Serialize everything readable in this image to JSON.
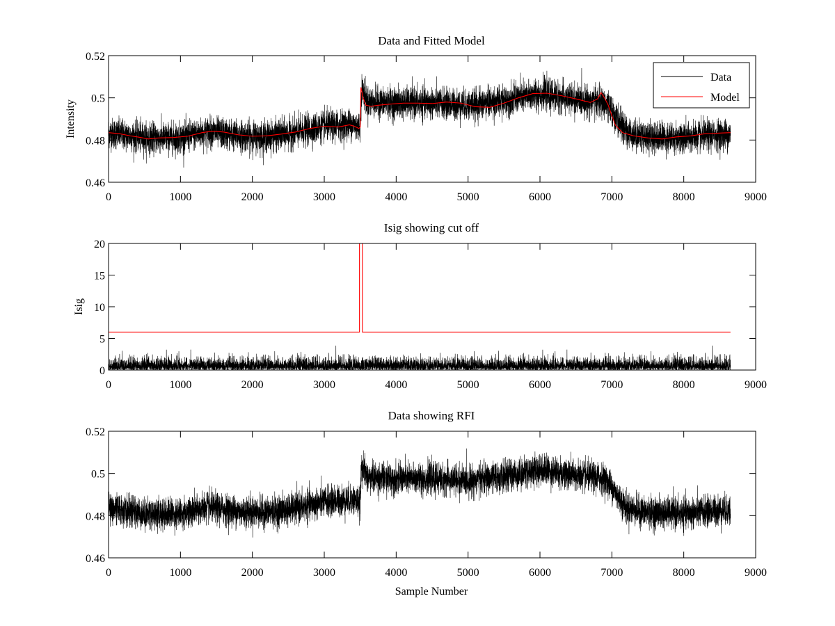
{
  "chart_data": [
    {
      "type": "line",
      "title": "Data and Fitted Model",
      "xlabel": "",
      "ylabel": "Intensity",
      "xlim": [
        0,
        9000
      ],
      "ylim": [
        0.46,
        0.52
      ],
      "xticks": [
        0,
        1000,
        2000,
        3000,
        4000,
        5000,
        6000,
        7000,
        8000,
        9000
      ],
      "yticks": [
        0.46,
        0.48,
        0.5,
        0.52
      ],
      "xtick_labels": [
        "0",
        "1000",
        "2000",
        "3000",
        "4000",
        "5000",
        "6000",
        "7000",
        "8000",
        "9000"
      ],
      "ytick_labels": [
        "0.46",
        "0.48",
        "0.5",
        "0.52"
      ],
      "legend_position": "top-right",
      "grid": false,
      "series": [
        {
          "name": "Data",
          "color": "#000000",
          "style": "noisy",
          "noise": 0.0065,
          "baseline_x": [
            0,
            500,
            1000,
            1400,
            1800,
            2200,
            2600,
            3000,
            3400,
            3500,
            3520,
            3600,
            4000,
            4500,
            5000,
            5500,
            6000,
            6500,
            6800,
            6900,
            7000,
            7200,
            7500,
            8000,
            8500,
            8650
          ],
          "baseline_y": [
            0.4835,
            0.481,
            0.481,
            0.484,
            0.482,
            0.4815,
            0.4835,
            0.4865,
            0.4875,
            0.486,
            0.5045,
            0.498,
            0.4975,
            0.4975,
            0.4965,
            0.4985,
            0.502,
            0.499,
            0.498,
            0.4975,
            0.4935,
            0.4835,
            0.4815,
            0.481,
            0.4825,
            0.4825
          ]
        },
        {
          "name": "Model",
          "color": "#ff0000",
          "style": "smooth",
          "x": [
            0,
            150,
            300,
            450,
            550,
            700,
            900,
            1100,
            1300,
            1450,
            1600,
            1800,
            2000,
            2200,
            2400,
            2600,
            2800,
            3000,
            3200,
            3350,
            3420,
            3480,
            3500,
            3510,
            3520,
            3540,
            3580,
            3650,
            3750,
            3900,
            4100,
            4300,
            4500,
            4700,
            4900,
            5100,
            5300,
            5500,
            5700,
            5900,
            6100,
            6300,
            6500,
            6700,
            6800,
            6850,
            6900,
            6950,
            7000,
            7050,
            7150,
            7300,
            7500,
            7700,
            7900,
            8100,
            8300,
            8500,
            8650
          ],
          "y": [
            0.4835,
            0.483,
            0.482,
            0.4812,
            0.4805,
            0.481,
            0.4812,
            0.4818,
            0.4835,
            0.4842,
            0.4838,
            0.4825,
            0.4818,
            0.482,
            0.4828,
            0.4838,
            0.4855,
            0.4865,
            0.4862,
            0.4872,
            0.4865,
            0.4855,
            0.486,
            0.505,
            0.5035,
            0.5,
            0.4965,
            0.496,
            0.4965,
            0.497,
            0.4975,
            0.4975,
            0.4973,
            0.498,
            0.4975,
            0.4958,
            0.4955,
            0.4975,
            0.5,
            0.502,
            0.5022,
            0.501,
            0.4995,
            0.4978,
            0.4995,
            0.5025,
            0.4998,
            0.4965,
            0.4915,
            0.487,
            0.4835,
            0.482,
            0.481,
            0.4805,
            0.4815,
            0.482,
            0.483,
            0.4833,
            0.4835
          ]
        }
      ]
    },
    {
      "type": "line",
      "title": "Isig showing cut off",
      "xlabel": "",
      "ylabel": "Isig",
      "xlim": [
        0,
        9000
      ],
      "ylim": [
        0,
        20
      ],
      "xticks": [
        0,
        1000,
        2000,
        3000,
        4000,
        5000,
        6000,
        7000,
        8000,
        9000
      ],
      "yticks": [
        0,
        5,
        10,
        15,
        20
      ],
      "xtick_labels": [
        "0",
        "1000",
        "2000",
        "3000",
        "4000",
        "5000",
        "6000",
        "7000",
        "8000",
        "9000"
      ],
      "ytick_labels": [
        "0",
        "5",
        "10",
        "15",
        "20"
      ],
      "grid": false,
      "series": [
        {
          "color": "#000000",
          "style": "abs-noise",
          "x_range": [
            0,
            8650
          ],
          "noise": 0.9
        },
        {
          "color": "#ff0000",
          "style": "step",
          "x": [
            0,
            3490,
            3490,
            3530,
            3530,
            8650
          ],
          "y": [
            6,
            6,
            20,
            20,
            6,
            6
          ]
        }
      ]
    },
    {
      "type": "line",
      "title": "Data showing RFI",
      "xlabel": "Sample Number",
      "ylabel": "",
      "xlim": [
        0,
        9000
      ],
      "ylim": [
        0.46,
        0.52
      ],
      "xticks": [
        0,
        1000,
        2000,
        3000,
        4000,
        5000,
        6000,
        7000,
        8000,
        9000
      ],
      "yticks": [
        0.46,
        0.48,
        0.5,
        0.52
      ],
      "xtick_labels": [
        "0",
        "1000",
        "2000",
        "3000",
        "4000",
        "5000",
        "6000",
        "7000",
        "8000",
        "9000"
      ],
      "ytick_labels": [
        "0.46",
        "0.48",
        "0.5",
        "0.52"
      ],
      "grid": false,
      "series": [
        {
          "color": "#000000",
          "style": "noisy",
          "noise": 0.0065,
          "baseline_x": [
            0,
            500,
            1000,
            1400,
            1800,
            2200,
            2600,
            3000,
            3400,
            3500,
            3520,
            3600,
            4000,
            4500,
            5000,
            5500,
            6000,
            6500,
            6800,
            6900,
            7000,
            7200,
            7500,
            8000,
            8500,
            8650
          ],
          "baseline_y": [
            0.4835,
            0.481,
            0.481,
            0.484,
            0.482,
            0.4815,
            0.4835,
            0.4865,
            0.4875,
            0.486,
            0.5045,
            0.498,
            0.4975,
            0.4975,
            0.4965,
            0.4985,
            0.502,
            0.499,
            0.498,
            0.4975,
            0.4935,
            0.4835,
            0.4815,
            0.481,
            0.4825,
            0.4825
          ]
        }
      ]
    }
  ]
}
